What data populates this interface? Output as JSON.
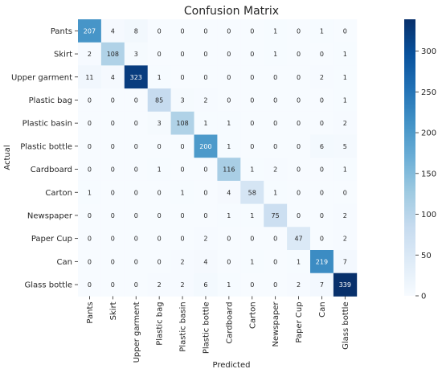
{
  "chart_data": {
    "type": "heatmap",
    "title": "Confusion Matrix",
    "xlabel": "Predicted",
    "ylabel": "Actual",
    "labels": [
      "Pants",
      "Skirt",
      "Upper garment",
      "Plastic bag",
      "Plastic basin",
      "Plastic bottle",
      "Cardboard",
      "Carton",
      "Newspaper",
      "Paper Cup",
      "Can",
      "Glass bottle"
    ],
    "matrix": [
      [
        207,
        4,
        8,
        0,
        0,
        0,
        0,
        0,
        1,
        0,
        1,
        0
      ],
      [
        2,
        108,
        3,
        0,
        0,
        0,
        0,
        0,
        1,
        0,
        0,
        1
      ],
      [
        11,
        4,
        323,
        1,
        0,
        0,
        0,
        0,
        0,
        0,
        2,
        1
      ],
      [
        0,
        0,
        0,
        85,
        3,
        2,
        0,
        0,
        0,
        0,
        0,
        1
      ],
      [
        0,
        0,
        0,
        3,
        108,
        1,
        1,
        0,
        0,
        0,
        0,
        2
      ],
      [
        0,
        0,
        0,
        0,
        0,
        200,
        1,
        0,
        0,
        0,
        6,
        5
      ],
      [
        0,
        0,
        0,
        1,
        0,
        0,
        116,
        1,
        2,
        0,
        0,
        1
      ],
      [
        1,
        0,
        0,
        0,
        1,
        0,
        4,
        58,
        1,
        0,
        0,
        0
      ],
      [
        0,
        0,
        0,
        0,
        0,
        0,
        1,
        1,
        75,
        0,
        0,
        2
      ],
      [
        0,
        0,
        0,
        0,
        0,
        2,
        0,
        0,
        0,
        47,
        0,
        2
      ],
      [
        0,
        0,
        0,
        0,
        2,
        4,
        0,
        1,
        0,
        1,
        219,
        7
      ],
      [
        0,
        0,
        0,
        2,
        2,
        6,
        1,
        0,
        0,
        2,
        7,
        339
      ]
    ],
    "colorbar": {
      "min": 0,
      "max": 339,
      "ticks": [
        0,
        50,
        100,
        150,
        200,
        250,
        300
      ],
      "colormap": "Blues"
    }
  }
}
